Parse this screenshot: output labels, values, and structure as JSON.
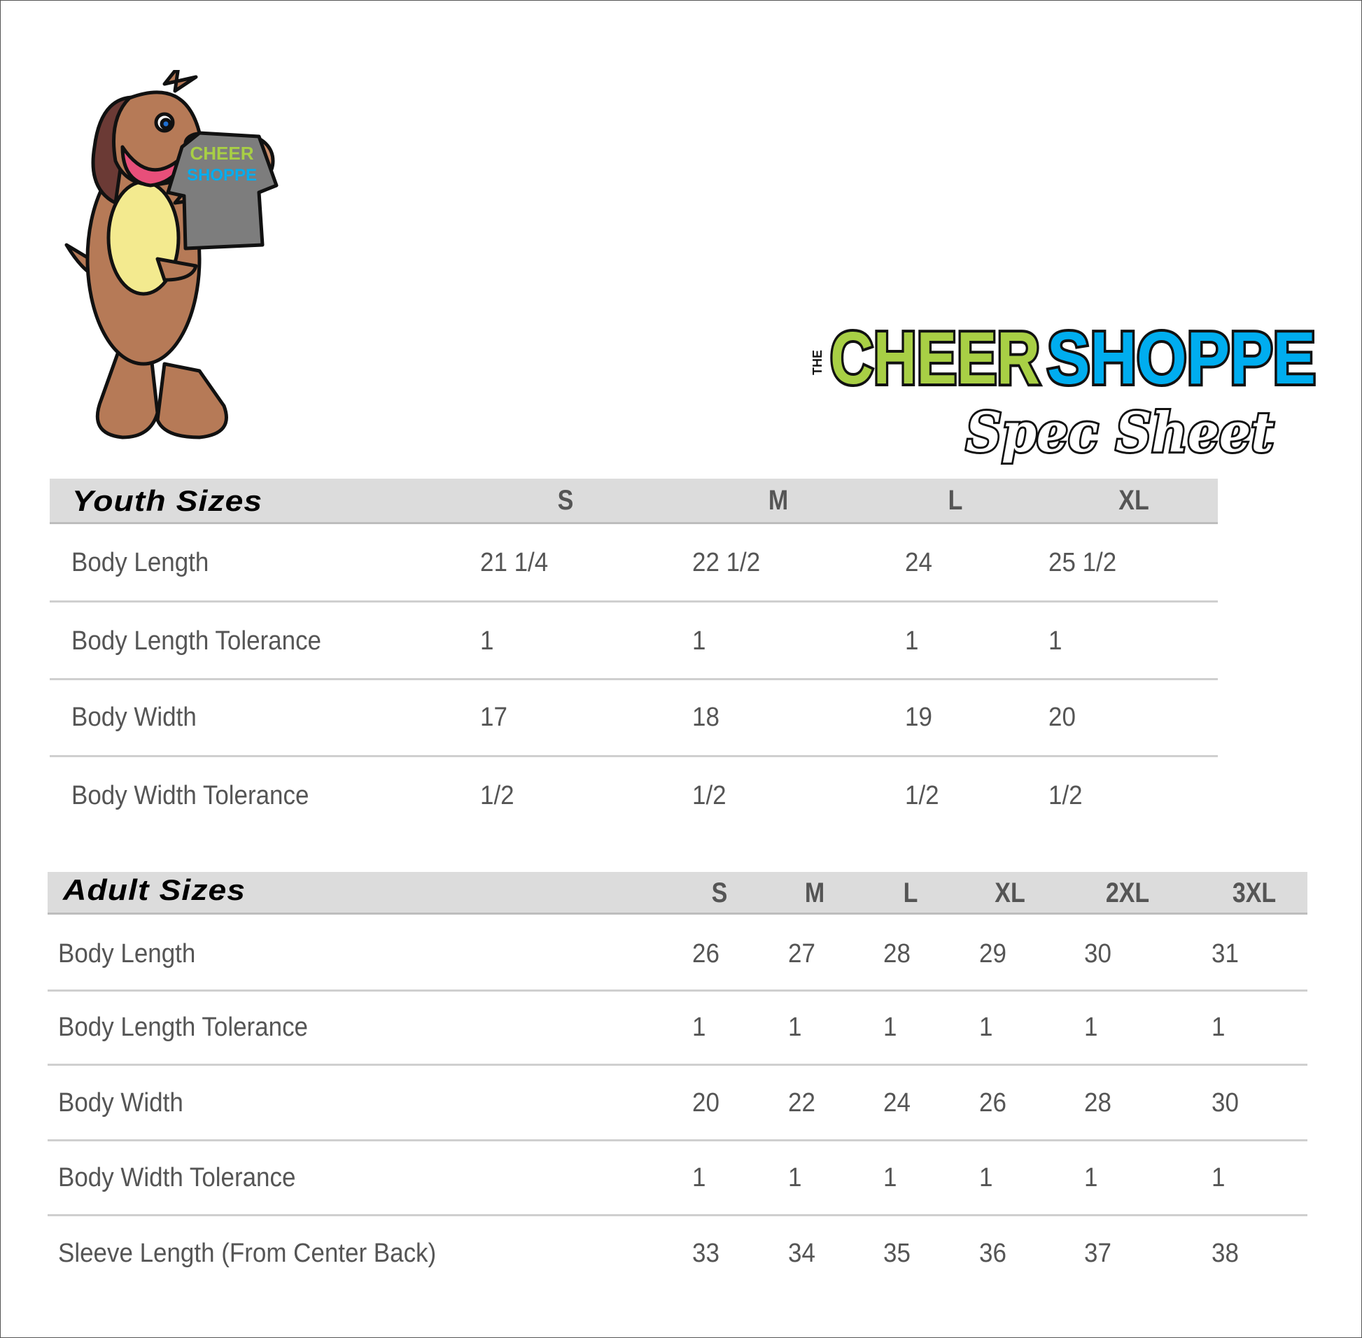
{
  "logo": {
    "text_the": "THE",
    "text_cheer": "CHEER",
    "text_shoppe": "SHOPPE",
    "text_script": "Spec Sheet",
    "colors": {
      "green": "#a8cf45",
      "blue": "#00adef",
      "outline": "#111111"
    }
  },
  "mascot": {
    "shirt_text": [
      "CHEER",
      "SHOPPE"
    ]
  },
  "youth": {
    "title": "Youth Sizes",
    "sizes": [
      "S",
      "M",
      "L",
      "XL"
    ],
    "rows": [
      {
        "label": "Body Length",
        "values": [
          "21 1/4",
          "22 1/2",
          "24",
          "25 1/2"
        ]
      },
      {
        "label": "Body Length Tolerance",
        "values": [
          "1",
          "1",
          "1",
          "1"
        ]
      },
      {
        "label": "Body Width",
        "values": [
          "17",
          "18",
          "19",
          "20"
        ]
      },
      {
        "label": "Body Width Tolerance",
        "values": [
          "1/2",
          "1/2",
          "1/2",
          "1/2"
        ]
      }
    ]
  },
  "adult": {
    "title": "Adult Sizes",
    "sizes": [
      "S",
      "M",
      "L",
      "XL",
      "2XL",
      "3XL"
    ],
    "rows": [
      {
        "label": "Body Length",
        "values": [
          "26",
          "27",
          "28",
          "29",
          "30",
          "31"
        ]
      },
      {
        "label": "Body Length Tolerance",
        "values": [
          "1",
          "1",
          "1",
          "1",
          "1",
          "1"
        ]
      },
      {
        "label": "Body Width",
        "values": [
          "20",
          "22",
          "24",
          "26",
          "28",
          "30"
        ]
      },
      {
        "label": "Body Width Tolerance",
        "values": [
          "1",
          "1",
          "1",
          "1",
          "1",
          "1"
        ]
      },
      {
        "label": "Sleeve Length (From Center Back)",
        "values": [
          "33",
          "34",
          "35",
          "36",
          "37",
          "38"
        ]
      }
    ]
  }
}
